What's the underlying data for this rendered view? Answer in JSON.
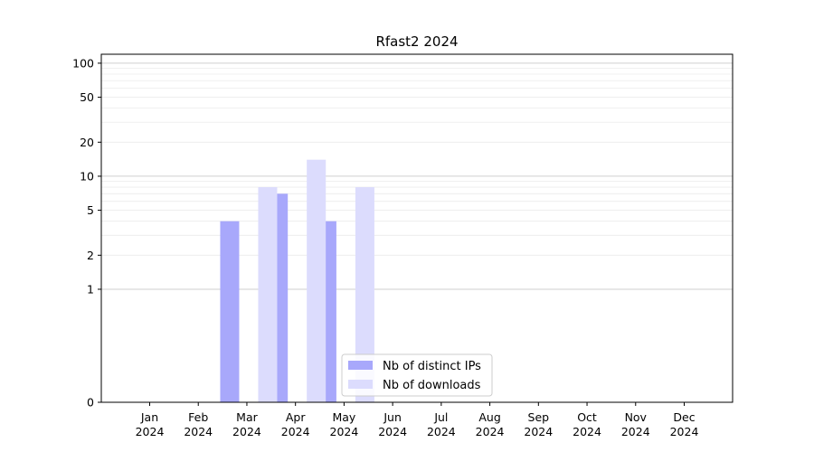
{
  "chart_data": {
    "type": "bar",
    "title": "Rfast2 2024",
    "xlabel": "",
    "ylabel": "",
    "categories": [
      {
        "month": "Jan",
        "year": "2024"
      },
      {
        "month": "Feb",
        "year": "2024"
      },
      {
        "month": "Mar",
        "year": "2024"
      },
      {
        "month": "Apr",
        "year": "2024"
      },
      {
        "month": "May",
        "year": "2024"
      },
      {
        "month": "Jun",
        "year": "2024"
      },
      {
        "month": "Jul",
        "year": "2024"
      },
      {
        "month": "Aug",
        "year": "2024"
      },
      {
        "month": "Sep",
        "year": "2024"
      },
      {
        "month": "Oct",
        "year": "2024"
      },
      {
        "month": "Nov",
        "year": "2024"
      },
      {
        "month": "Dec",
        "year": "2024"
      }
    ],
    "series": [
      {
        "name": "Nb of distinct IPs",
        "color": "#a8a8fb",
        "values": [
          0,
          0,
          4,
          7,
          4,
          0,
          0,
          0,
          0,
          0,
          0,
          0
        ]
      },
      {
        "name": "Nb of downloads",
        "color": "#dcdcfd",
        "values": [
          0,
          0,
          8,
          14,
          8,
          0,
          0,
          0,
          0,
          0,
          0,
          0
        ]
      }
    ],
    "y_scale": "symlog",
    "ylim": [
      0,
      120
    ],
    "y_ticks": [
      0,
      1,
      2,
      5,
      10,
      20,
      50,
      100
    ],
    "y_tick_labels": [
      "0",
      "1",
      "2",
      "5",
      "10",
      "20",
      "50",
      "100"
    ],
    "grid": "y-major-and-minor",
    "legend_position": "bottom-center"
  }
}
